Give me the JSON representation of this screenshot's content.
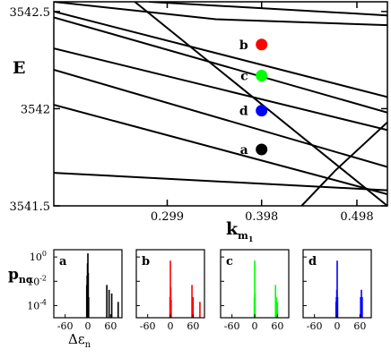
{
  "chart_data": [
    {
      "type": "line",
      "xlabel": "k",
      "xlabel_sub": "m",
      "xlabel_subsub": "1",
      "ylabel": "E",
      "xlim": [
        0.18,
        0.53
      ],
      "ylim": [
        3541.5,
        3542.55
      ],
      "xticks": [
        "0.299",
        "0.398",
        "0.498"
      ],
      "xtick_values": [
        0.299,
        0.398,
        0.498
      ],
      "yticks": [
        "3541.5",
        "3542",
        "3542.5"
      ],
      "ytick_values": [
        3541.5,
        3542.0,
        3542.5
      ],
      "grid": false,
      "series": [
        {
          "x": [
            0.18,
            0.53
          ],
          "y": [
            3542.5,
            3542.06
          ]
        },
        {
          "x": [
            0.18,
            0.53
          ],
          "y": [
            3542.47,
            3541.98
          ]
        },
        {
          "x": [
            0.18,
            0.53
          ],
          "y": [
            3542.31,
            3541.89
          ]
        },
        {
          "x": [
            0.18,
            0.53
          ],
          "y": [
            3542.2,
            3541.7
          ]
        },
        {
          "x": [
            0.18,
            0.53
          ],
          "y": [
            3542.02,
            3541.56
          ]
        },
        {
          "x": [
            0.18,
            0.53
          ],
          "y": [
            3541.67,
            3541.58
          ]
        },
        {
          "x": [
            0.18,
            0.35,
            0.53
          ],
          "y": [
            3542.55,
            3542.46,
            3542.43
          ]
        },
        {
          "x": [
            0.28,
            0.53
          ],
          "y": [
            3542.55,
            3542.48
          ]
        },
        {
          "x": [
            0.265,
            0.53
          ],
          "y": [
            3542.55,
            3541.5
          ]
        },
        {
          "x": [
            0.44,
            0.475,
            0.53
          ],
          "y": [
            3541.5,
            3541.68,
            3541.93
          ]
        }
      ],
      "points": [
        {
          "label": "b",
          "x": 0.398,
          "y": 3542.33,
          "color": "#ff0000"
        },
        {
          "label": "c",
          "x": 0.398,
          "y": 3542.17,
          "color": "#00ff00"
        },
        {
          "label": "d",
          "x": 0.398,
          "y": 3541.99,
          "color": "#0000ff"
        },
        {
          "label": "a",
          "x": 0.398,
          "y": 3541.79,
          "color": "#000000"
        }
      ]
    },
    {
      "type": "bar",
      "panels": [
        {
          "label": "a",
          "color": "#000000",
          "bars": [
            {
              "x": -3,
              "y": 0.005
            },
            {
              "x": -2,
              "y": 0.03
            },
            {
              "x": -1,
              "y": 0.3
            },
            {
              "x": 0,
              "y": 2
            },
            {
              "x": 1,
              "y": 0.05
            },
            {
              "x": 2,
              "y": 0.0005
            },
            {
              "x": 50,
              "y": 0.005
            },
            {
              "x": 56,
              "y": 0.002
            },
            {
              "x": 63,
              "y": 0.001
            },
            {
              "x": 80,
              "y": 0.0002
            }
          ]
        },
        {
          "label": "b",
          "color": "#ff0000",
          "bars": [
            {
              "x": -1,
              "y": 0.0005
            },
            {
              "x": 0,
              "y": 0.5
            },
            {
              "x": 1,
              "y": 0.003
            },
            {
              "x": 2,
              "y": 0.0003
            },
            {
              "x": 57,
              "y": 0.005
            },
            {
              "x": 60,
              "y": 0.0005
            },
            {
              "x": 78,
              "y": 0.0002
            }
          ]
        },
        {
          "label": "c",
          "color": "#00ff00",
          "bars": [
            {
              "x": -1,
              "y": 0.0005
            },
            {
              "x": 0,
              "y": 0.5
            },
            {
              "x": 1,
              "y": 0.001
            },
            {
              "x": 55,
              "y": 0.005
            },
            {
              "x": 57,
              "y": 0.0005
            },
            {
              "x": 60,
              "y": 0.0002
            }
          ]
        },
        {
          "label": "d",
          "color": "#0000ff",
          "bars": [
            {
              "x": -3,
              "y": 0.0002
            },
            {
              "x": -2,
              "y": 0.0005
            },
            {
              "x": -1,
              "y": 0.002
            },
            {
              "x": 0,
              "y": 0.5
            },
            {
              "x": 1,
              "y": 0.0005
            },
            {
              "x": 62,
              "y": 0.0005
            },
            {
              "x": 64,
              "y": 0.002
            },
            {
              "x": 66,
              "y": 0.0005
            }
          ]
        }
      ],
      "xlim": [
        -90,
        90
      ],
      "ylim_log10": [
        -5,
        0.6
      ],
      "xticks": [
        "-60",
        "0",
        "60"
      ],
      "xtick_values": [
        -60,
        0,
        60
      ],
      "yticks": [
        "10",
        "10",
        "10"
      ],
      "ytick_exponents": [
        "0",
        "-2",
        "-4"
      ],
      "ytick_values_log10": [
        0,
        -2,
        -4
      ],
      "ylabel": "p",
      "ylabel_sub": "nα",
      "xlabel": "Δε",
      "xlabel_sub": "n"
    }
  ]
}
